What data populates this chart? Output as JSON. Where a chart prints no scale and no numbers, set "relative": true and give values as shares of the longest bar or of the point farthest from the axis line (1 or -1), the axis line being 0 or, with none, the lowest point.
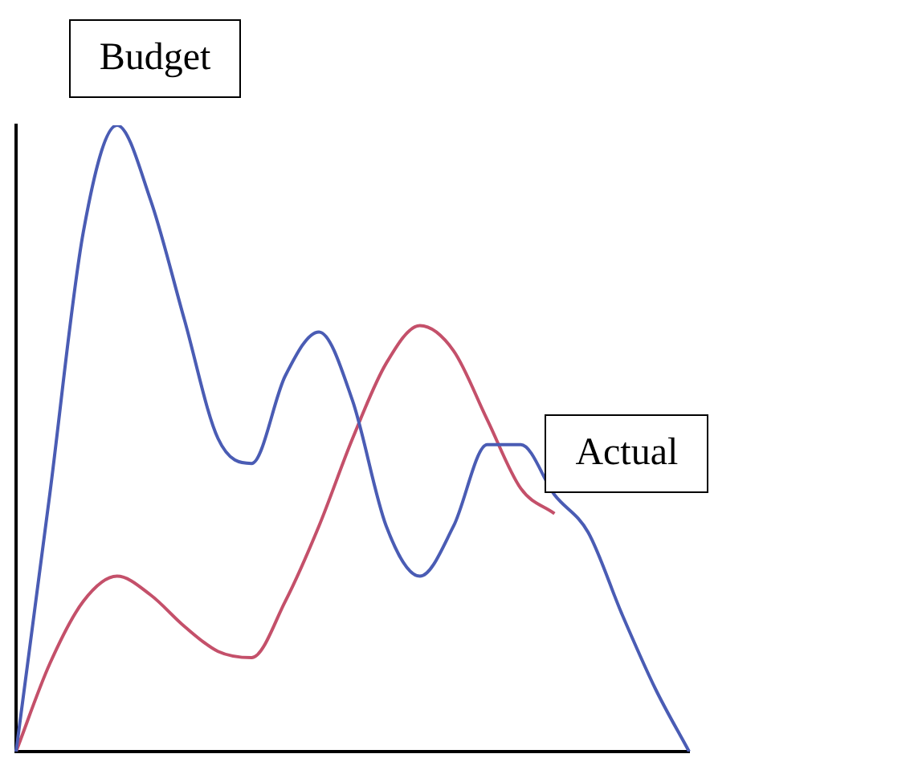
{
  "chart_data": {
    "type": "line",
    "relative": true,
    "grid": false,
    "legend": false,
    "marker": "none",
    "line_style": "solid",
    "categories": [
      null,
      null,
      null,
      null,
      null,
      null,
      null,
      null,
      null,
      null,
      null,
      null,
      null,
      null,
      null,
      null,
      null,
      null,
      null,
      null,
      null
    ],
    "series": [
      {
        "name": "Budget",
        "color": "#4a5cb4",
        "values": [
          0,
          0.41,
          0.83,
          1,
          0.88,
          0.69,
          0.5,
          0.46,
          0.6,
          0.67,
          0.56,
          0.36,
          0.28,
          0.36,
          0.49,
          0.49,
          0.41,
          0.35,
          0.22,
          0.1,
          0
        ]
      },
      {
        "name": "Actual",
        "color": "#c4506a",
        "values": [
          0,
          0.14,
          0.24,
          0.28,
          0.25,
          0.2,
          0.16,
          0.15,
          0.24,
          0.36,
          0.5,
          0.62,
          0.68,
          0.64,
          0.53,
          0.42,
          0.38,
          null,
          null,
          null,
          null
        ]
      }
    ]
  }
}
